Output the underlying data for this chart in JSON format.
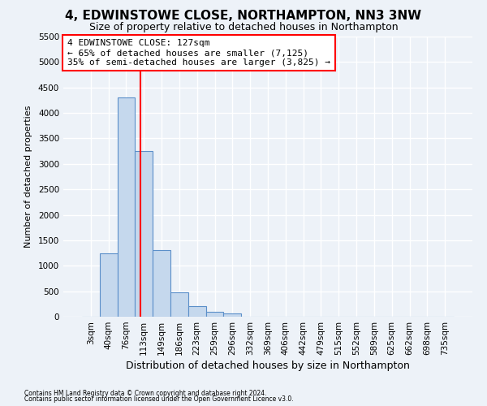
{
  "title": "4, EDWINSTOWE CLOSE, NORTHAMPTON, NN3 3NW",
  "subtitle": "Size of property relative to detached houses in Northampton",
  "xlabel": "Distribution of detached houses by size in Northampton",
  "ylabel": "Number of detached properties",
  "footnote1": "Contains HM Land Registry data © Crown copyright and database right 2024.",
  "footnote2": "Contains public sector information licensed under the Open Government Licence v3.0.",
  "bar_labels": [
    "3sqm",
    "40sqm",
    "76sqm",
    "113sqm",
    "149sqm",
    "186sqm",
    "223sqm",
    "259sqm",
    "296sqm",
    "332sqm",
    "369sqm",
    "406sqm",
    "442sqm",
    "479sqm",
    "515sqm",
    "552sqm",
    "589sqm",
    "625sqm",
    "662sqm",
    "698sqm",
    "735sqm"
  ],
  "bar_values": [
    0,
    1250,
    4300,
    3250,
    1300,
    475,
    200,
    100,
    60,
    0,
    0,
    0,
    0,
    0,
    0,
    0,
    0,
    0,
    0,
    0,
    0
  ],
  "bar_color": "#c5d8ed",
  "bar_edge_color": "#5b8fc9",
  "vline_x_index": 2.82,
  "vline_color": "red",
  "annotation_text": "4 EDWINSTOWE CLOSE: 127sqm\n← 65% of detached houses are smaller (7,125)\n35% of semi-detached houses are larger (3,825) →",
  "annotation_box_facecolor": "white",
  "annotation_box_edgecolor": "red",
  "ylim": [
    0,
    5500
  ],
  "yticks": [
    0,
    500,
    1000,
    1500,
    2000,
    2500,
    3000,
    3500,
    4000,
    4500,
    5000,
    5500
  ],
  "bg_color": "#edf2f8",
  "plot_bg_color": "#edf2f8",
  "grid_color": "white",
  "title_fontsize": 11,
  "subtitle_fontsize": 9,
  "ylabel_fontsize": 8,
  "xlabel_fontsize": 9,
  "tick_fontsize": 7.5,
  "annotation_fontsize": 8
}
